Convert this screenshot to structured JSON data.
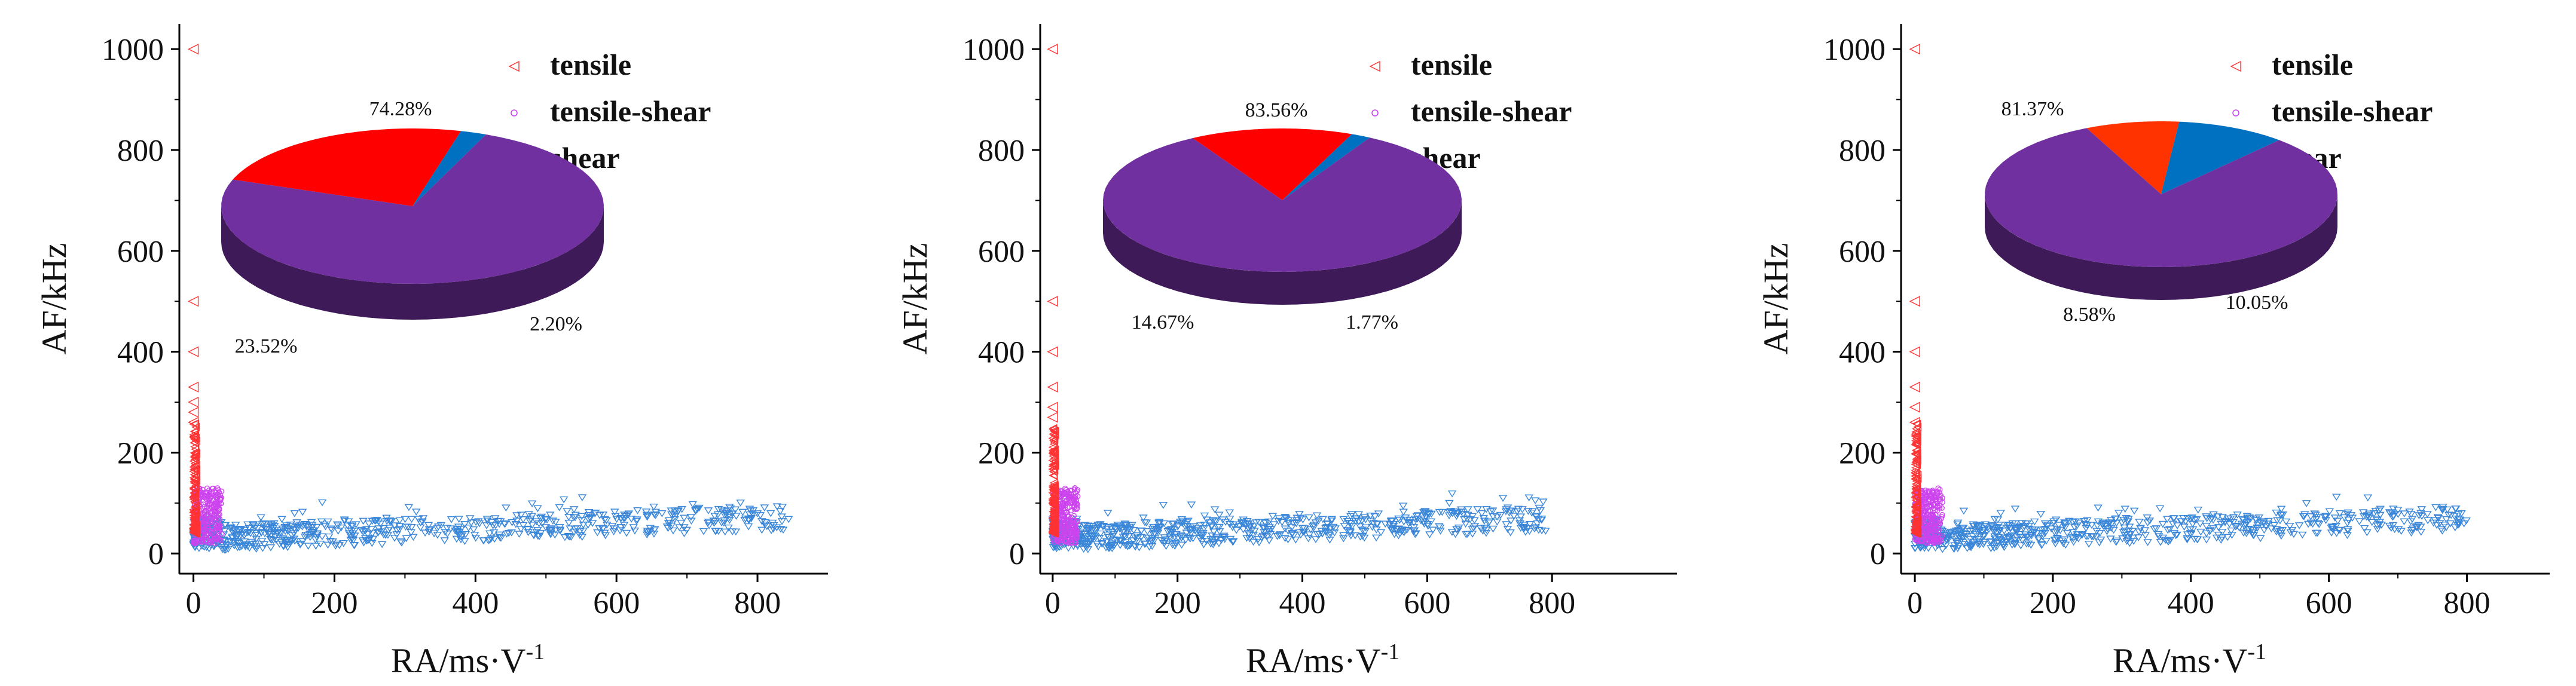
{
  "colors": {
    "tensile": "#ff3333",
    "tensile_shear": "#cc44ee",
    "shear": "#3a86d8",
    "pie_purple": "#7030a0",
    "pie_red": "#ff0000",
    "pie_blue": "#0070c0",
    "pie_orangered": "#ff3300"
  },
  "chart_data": [
    {
      "type": "scatter",
      "xlabel": "RA/ms·V-1",
      "ylabel": "AF/kHz",
      "xlim": [
        -20,
        900
      ],
      "ylim": [
        -40,
        1050
      ],
      "xticks": [
        0,
        200,
        400,
        600,
        800
      ],
      "yticks": [
        0,
        200,
        400,
        600,
        800,
        1000
      ],
      "legend": [
        "tensile",
        "tensile-shear",
        "shear"
      ],
      "legend_placement": "top-right",
      "tensile_outliers": [
        [
          0,
          1000
        ],
        [
          0,
          500
        ],
        [
          0,
          400
        ],
        [
          0,
          330
        ],
        [
          0,
          300
        ],
        [
          0,
          280
        ],
        [
          0,
          260
        ]
      ],
      "shear_extent_x": 850,
      "pie": {
        "slices": [
          {
            "name": "shear-dominant (purple)",
            "value": 74.28,
            "label": "74.28%",
            "color_key": "pie_purple"
          },
          {
            "name": "tensile",
            "value": 23.52,
            "label": "23.52%",
            "color_key": "pie_red"
          },
          {
            "name": "shear (blue)",
            "value": 2.2,
            "label": "2.20%",
            "color_key": "pie_blue"
          }
        ]
      }
    },
    {
      "type": "scatter",
      "xlabel": "RA/ms·V-1",
      "ylabel": "AF/kHz",
      "xlim": [
        -20,
        1000
      ],
      "ylim": [
        -40,
        1050
      ],
      "xticks": [
        0,
        200,
        400,
        600,
        800
      ],
      "yticks": [
        0,
        200,
        400,
        600,
        800,
        1000
      ],
      "legend": [
        "tensile",
        "tensile-shear",
        "shear"
      ],
      "legend_placement": "top-right",
      "tensile_outliers": [
        [
          0,
          1000
        ],
        [
          0,
          500
        ],
        [
          0,
          400
        ],
        [
          0,
          330
        ],
        [
          0,
          290
        ],
        [
          0,
          270
        ]
      ],
      "shear_extent_x": 790,
      "pie": {
        "slices": [
          {
            "name": "shear-dominant (purple)",
            "value": 83.56,
            "label": "83.56%",
            "color_key": "pie_purple"
          },
          {
            "name": "tensile",
            "value": 14.67,
            "label": "14.67%",
            "color_key": "pie_red"
          },
          {
            "name": "shear (blue)",
            "value": 1.77,
            "label": "1.77%",
            "color_key": "pie_blue"
          }
        ]
      }
    },
    {
      "type": "scatter",
      "xlabel": "RA/ms·V-1",
      "ylabel": "AF/kHz",
      "xlim": [
        -20,
        920
      ],
      "ylim": [
        -40,
        1050
      ],
      "xticks": [
        0,
        200,
        400,
        600,
        800
      ],
      "yticks": [
        0,
        200,
        400,
        600,
        800,
        1000
      ],
      "legend": [
        "tensile",
        "tensile-shear",
        "shear"
      ],
      "legend_placement": "top-right",
      "tensile_outliers": [
        [
          0,
          1000
        ],
        [
          0,
          500
        ],
        [
          0,
          400
        ],
        [
          0,
          330
        ],
        [
          0,
          290
        ],
        [
          0,
          260
        ]
      ],
      "shear_extent_x": 800,
      "pie": {
        "slices": [
          {
            "name": "shear-dominant (purple)",
            "value": 81.37,
            "label": "81.37%",
            "color_key": "pie_purple"
          },
          {
            "name": "tensile",
            "value": 8.58,
            "label": "8.58%",
            "color_key": "pie_orangered"
          },
          {
            "name": "shear (blue)",
            "value": 10.05,
            "label": "10.05%",
            "color_key": "pie_blue"
          }
        ]
      }
    }
  ]
}
